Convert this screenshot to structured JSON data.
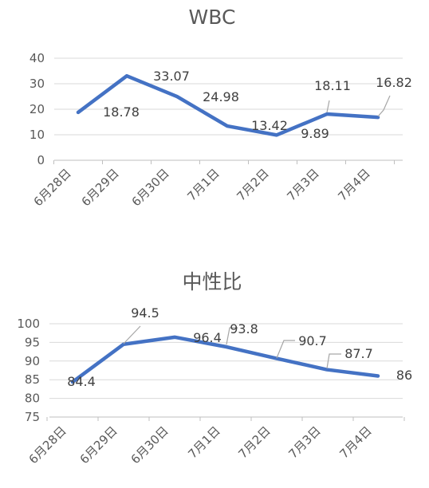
{
  "chart_data": [
    {
      "type": "line",
      "title": "WBC",
      "categories": [
        "6月28日",
        "6月29日",
        "6月30日",
        "7月1日",
        "7月2日",
        "7月3日",
        "7月4日"
      ],
      "series": [
        {
          "values": [
            18.78,
            33.07,
            24.98,
            13.42,
            9.89,
            18.11,
            16.82
          ]
        }
      ],
      "ylim": [
        0,
        40
      ],
      "yticks": [
        "0",
        "10",
        "20",
        "30",
        "40"
      ],
      "data_labels": [
        "18.78",
        "33.07",
        "24.98",
        "13.42",
        "9.89",
        "18.11",
        "16.82"
      ],
      "grid": true,
      "line_color": "#4472c4"
    },
    {
      "type": "line",
      "title": "中性比",
      "categories": [
        "6月28日",
        "6月29日",
        "6月30日",
        "7月1日",
        "7月2日",
        "7月3日",
        "7月4日"
      ],
      "series": [
        {
          "values": [
            84.4,
            94.5,
            96.4,
            93.8,
            90.7,
            87.7,
            86
          ]
        }
      ],
      "ylim": [
        75,
        100
      ],
      "yticks": [
        "75",
        "80",
        "85",
        "90",
        "95",
        "100"
      ],
      "data_labels": [
        "84.4",
        "94.5",
        "96.4",
        "93.8",
        "90.7",
        "87.7",
        "86"
      ],
      "grid": true,
      "line_color": "#4472c4"
    }
  ]
}
